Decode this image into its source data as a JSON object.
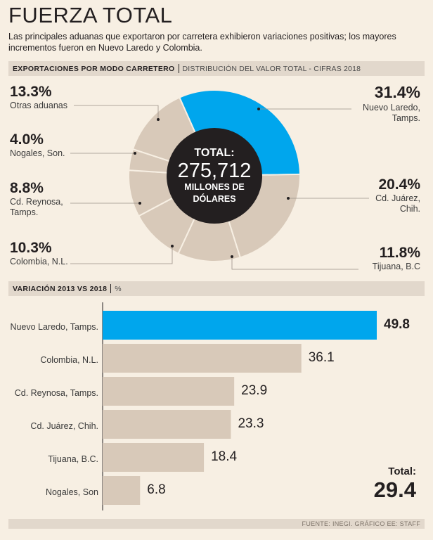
{
  "header": {
    "title": "FUERZA TOTAL",
    "subtitle": "Las principales aduanas que exportaron por carretera exhibieron variaciones positivas; los mayores incrementos fueron en Nuevo Laredo y Colombia."
  },
  "section1": {
    "bold": "EXPORTACIONES POR MODO CARRETERO",
    "light": "DISTRIBUCIÓN DEL VALOR TOTAL - CIFRAS 2018"
  },
  "section2": {
    "bold": "VARIACIÓN 2013 VS 2018",
    "light": "%"
  },
  "center": {
    "line1": "TOTAL:",
    "line2": "275,712",
    "line3": "MILLONES DE",
    "line4": "DÓLARES"
  },
  "colors": {
    "highlight": "#00a6ed",
    "neutral": "#d8c9b9",
    "center": "#231f20"
  },
  "pie_labels": [
    {
      "pct": "13.3%",
      "name": "Otras aduanas"
    },
    {
      "pct": "4.0%",
      "name": "Nogales, Son."
    },
    {
      "pct": "8.8%",
      "name1": "Cd. Reynosa,",
      "name2": "Tamps."
    },
    {
      "pct": "10.3%",
      "name": "Colombia, N.L."
    },
    {
      "pct": "31.4%",
      "name1": "Nuevo Laredo,",
      "name2": "Tamps."
    },
    {
      "pct": "20.4%",
      "name1": "Cd. Juárez,",
      "name2": "Chih."
    },
    {
      "pct": "11.8%",
      "name": "Tijuana, B.C"
    }
  ],
  "bar_labels": [
    "Nuevo Laredo, Tamps.",
    "Colombia, N.L.",
    "Cd. Reynosa, Tamps.",
    "Cd. Juárez, Chih.",
    "Tijuana, B.C.",
    "Nogales, Son"
  ],
  "bar_values_text": [
    "49.8",
    "36.1",
    "23.9",
    "23.3",
    "18.4",
    "6.8"
  ],
  "total": {
    "label": "Total:",
    "value": "29.4"
  },
  "footer": "FUENTE: INEGI. GRÁFICO EE: STAFF",
  "chart_data": [
    {
      "type": "pie",
      "title": "EXPORTACIONES POR MODO CARRETERO",
      "subtitle": "DISTRIBUCIÓN DEL VALOR TOTAL - CIFRAS 2018",
      "total": "275,712 MILLONES DE DÓLARES",
      "categories": [
        "Nuevo Laredo, Tamps.",
        "Cd. Juárez, Chih.",
        "Tijuana, B.C",
        "Colombia, N.L.",
        "Cd. Reynosa, Tamps.",
        "Nogales, Son.",
        "Otras aduanas"
      ],
      "values": [
        31.4,
        20.4,
        11.8,
        10.3,
        8.8,
        4.0,
        13.3
      ],
      "highlighted": "Nuevo Laredo, Tamps."
    },
    {
      "type": "bar",
      "orientation": "horizontal",
      "title": "VARIACIÓN 2013 VS 2018",
      "unit": "%",
      "categories": [
        "Nuevo Laredo, Tamps.",
        "Colombia, N.L.",
        "Cd. Reynosa, Tamps.",
        "Cd. Juárez, Chih.",
        "Tijuana, B.C.",
        "Nogales, Son"
      ],
      "values": [
        49.8,
        36.1,
        23.9,
        23.3,
        18.4,
        6.8
      ],
      "xlim": [
        0,
        52
      ],
      "highlighted": "Nuevo Laredo, Tamps.",
      "total": 29.4
    }
  ]
}
